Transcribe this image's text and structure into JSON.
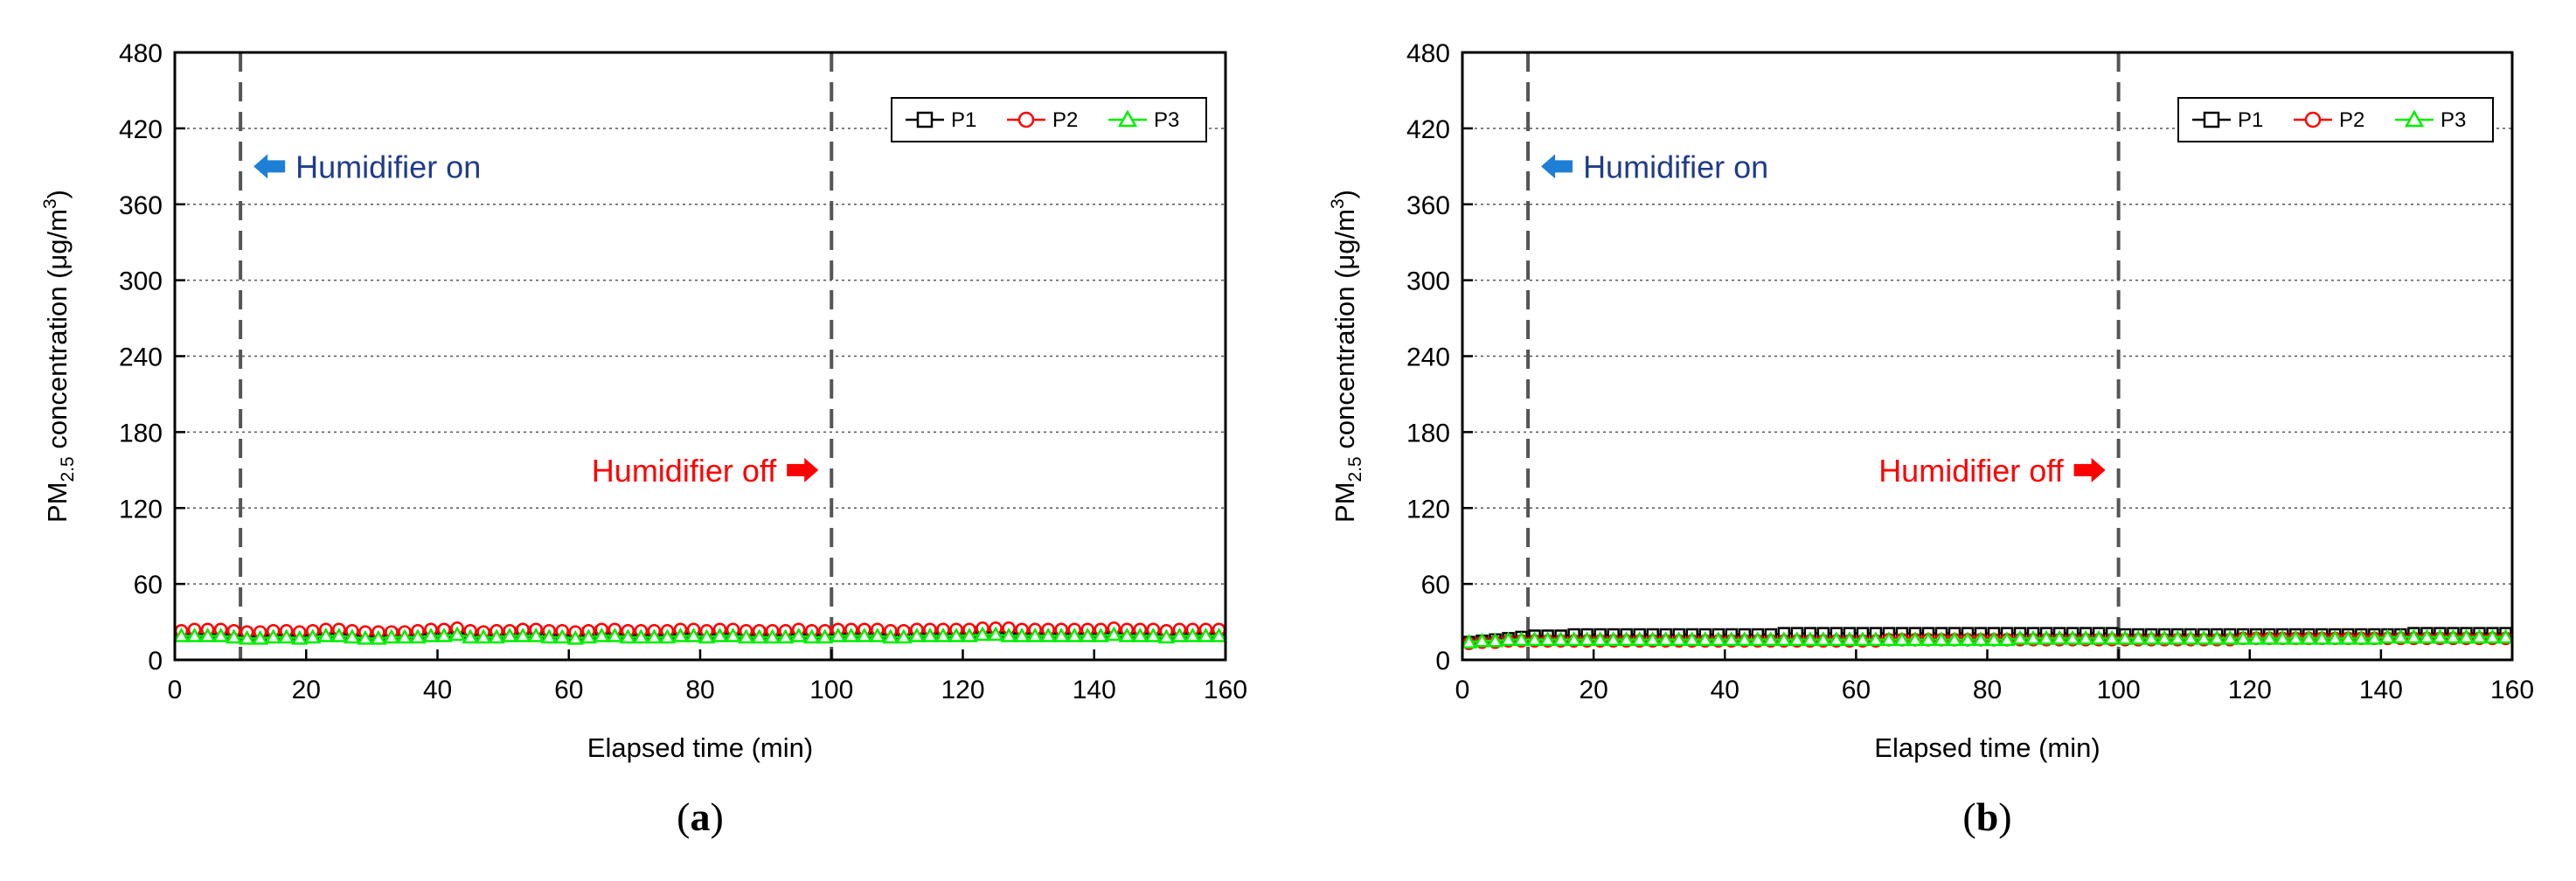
{
  "chart_data": [
    {
      "type": "line",
      "panel_label": "a",
      "xlabel": "Elapsed time (min)",
      "ylabel": {
        "pre": "PM",
        "sub": "2.5",
        "mid": " concentration  (μg/m",
        "sup": "3",
        "post": ")"
      },
      "xlim": [
        0,
        160
      ],
      "ylim": [
        0,
        480
      ],
      "xticks": [
        0,
        20,
        40,
        60,
        80,
        100,
        120,
        140,
        160
      ],
      "yticks": [
        0,
        60,
        120,
        180,
        240,
        300,
        360,
        420,
        480
      ],
      "grid": "horizontal-dotted",
      "legend_position": "top-right",
      "vlines": [
        10,
        100
      ],
      "annotations": [
        {
          "text": "Humidifier on",
          "color": "#1f3c88",
          "arrow_color": "#1e7fd6",
          "arrow": "left",
          "x": 12,
          "y": 390
        },
        {
          "text": "Humidifier off",
          "color": "#ff0000",
          "arrow_color": "#ff0000",
          "arrow": "right",
          "x": 98,
          "y": 150
        }
      ],
      "series": [
        {
          "name": "P1",
          "marker": "square",
          "color": "#000000",
          "x": [
            1,
            3,
            5,
            7,
            9,
            11,
            13,
            15,
            17,
            19,
            21,
            23,
            25,
            27,
            29,
            31,
            33,
            35,
            37,
            39,
            41,
            43,
            45,
            47,
            49,
            51,
            53,
            55,
            57,
            59,
            61,
            63,
            65,
            67,
            69,
            71,
            73,
            75,
            77,
            79,
            81,
            83,
            85,
            87,
            89,
            91,
            93,
            95,
            97,
            99,
            101,
            103,
            105,
            107,
            109,
            111,
            113,
            115,
            117,
            119,
            121,
            123,
            125,
            127,
            129,
            131,
            133,
            135,
            137,
            139,
            141,
            143,
            145,
            147,
            149,
            151,
            153,
            155,
            157,
            159
          ],
          "values": [
            20,
            20,
            20,
            20,
            21,
            19,
            19,
            20,
            20,
            19,
            20,
            21,
            21,
            20,
            19,
            19,
            20,
            20,
            20,
            21,
            22,
            22,
            20,
            20,
            20,
            21,
            22,
            22,
            20,
            20,
            19,
            21,
            22,
            21,
            20,
            20,
            20,
            20,
            21,
            21,
            20,
            21,
            21,
            20,
            21,
            20,
            20,
            21,
            20,
            20,
            21,
            21,
            22,
            21,
            20,
            21,
            21,
            21,
            21,
            21,
            22,
            22,
            22,
            21,
            21,
            21,
            21,
            21,
            21,
            21,
            21,
            22,
            21,
            21,
            21,
            20,
            21,
            21,
            21,
            21
          ]
        },
        {
          "name": "P2",
          "marker": "circle",
          "color": "#ff0000",
          "x": [
            1,
            3,
            5,
            7,
            9,
            11,
            13,
            15,
            17,
            19,
            21,
            23,
            25,
            27,
            29,
            31,
            33,
            35,
            37,
            39,
            41,
            43,
            45,
            47,
            49,
            51,
            53,
            55,
            57,
            59,
            61,
            63,
            65,
            67,
            69,
            71,
            73,
            75,
            77,
            79,
            81,
            83,
            85,
            87,
            89,
            91,
            93,
            95,
            97,
            99,
            101,
            103,
            105,
            107,
            109,
            111,
            113,
            115,
            117,
            119,
            121,
            123,
            125,
            127,
            129,
            131,
            133,
            135,
            137,
            139,
            141,
            143,
            145,
            147,
            149,
            151,
            153,
            155,
            157,
            159
          ],
          "values": [
            23,
            24,
            24,
            24,
            23,
            22,
            22,
            23,
            23,
            22,
            23,
            24,
            24,
            23,
            22,
            22,
            22,
            22,
            23,
            24,
            24,
            25,
            23,
            22,
            23,
            23,
            24,
            24,
            23,
            23,
            22,
            23,
            24,
            24,
            23,
            23,
            23,
            23,
            24,
            24,
            23,
            24,
            24,
            23,
            23,
            23,
            23,
            24,
            23,
            23,
            24,
            24,
            24,
            24,
            23,
            23,
            24,
            24,
            24,
            24,
            24,
            25,
            25,
            25,
            24,
            24,
            24,
            24,
            24,
            24,
            24,
            25,
            24,
            24,
            24,
            23,
            24,
            24,
            24,
            24
          ]
        },
        {
          "name": "P3",
          "marker": "triangle",
          "color": "#00ee00",
          "x": [
            1,
            3,
            5,
            7,
            9,
            11,
            13,
            15,
            17,
            19,
            21,
            23,
            25,
            27,
            29,
            31,
            33,
            35,
            37,
            39,
            41,
            43,
            45,
            47,
            49,
            51,
            53,
            55,
            57,
            59,
            61,
            63,
            65,
            67,
            69,
            71,
            73,
            75,
            77,
            79,
            81,
            83,
            85,
            87,
            89,
            91,
            93,
            95,
            97,
            99,
            101,
            103,
            105,
            107,
            109,
            111,
            113,
            115,
            117,
            119,
            121,
            123,
            125,
            127,
            129,
            131,
            133,
            135,
            137,
            139,
            141,
            143,
            145,
            147,
            149,
            151,
            153,
            155,
            157,
            159
          ],
          "values": [
            19,
            19,
            19,
            19,
            18,
            17,
            17,
            18,
            18,
            17,
            18,
            19,
            19,
            18,
            17,
            17,
            18,
            18,
            18,
            19,
            19,
            20,
            18,
            18,
            18,
            19,
            19,
            19,
            18,
            18,
            17,
            18,
            19,
            19,
            18,
            18,
            18,
            18,
            19,
            19,
            18,
            19,
            19,
            18,
            18,
            18,
            18,
            19,
            18,
            18,
            19,
            19,
            19,
            19,
            18,
            18,
            19,
            19,
            19,
            19,
            19,
            20,
            20,
            19,
            19,
            19,
            19,
            19,
            19,
            19,
            19,
            20,
            19,
            19,
            19,
            18,
            19,
            19,
            19,
            19
          ]
        }
      ]
    },
    {
      "type": "line",
      "panel_label": "b",
      "xlabel": "Elapsed time (min)",
      "ylabel": {
        "pre": "PM",
        "sub": "2.5",
        "mid": " concentration  (μg/m",
        "sup": "3",
        "post": ")"
      },
      "xlim": [
        0,
        160
      ],
      "ylim": [
        0,
        480
      ],
      "xticks": [
        0,
        20,
        40,
        60,
        80,
        100,
        120,
        140,
        160
      ],
      "yticks": [
        0,
        60,
        120,
        180,
        240,
        300,
        360,
        420,
        480
      ],
      "grid": "horizontal-dotted",
      "legend_position": "top-right",
      "vlines": [
        10,
        100
      ],
      "annotations": [
        {
          "text": "Humidifier on",
          "color": "#1f3c88",
          "arrow_color": "#1e7fd6",
          "arrow": "left",
          "x": 12,
          "y": 390
        },
        {
          "text": "Humidifier off",
          "color": "#ff0000",
          "arrow_color": "#ff0000",
          "arrow": "right",
          "x": 98,
          "y": 150
        }
      ],
      "series": [
        {
          "name": "P1",
          "marker": "square",
          "color": "#000000",
          "x": [
            1,
            3,
            5,
            7,
            9,
            11,
            13,
            15,
            17,
            19,
            21,
            23,
            25,
            27,
            29,
            31,
            33,
            35,
            37,
            39,
            41,
            43,
            45,
            47,
            49,
            51,
            53,
            55,
            57,
            59,
            61,
            63,
            65,
            67,
            69,
            71,
            73,
            75,
            77,
            79,
            81,
            83,
            85,
            87,
            89,
            91,
            93,
            95,
            97,
            99,
            101,
            103,
            105,
            107,
            109,
            111,
            113,
            115,
            117,
            119,
            121,
            123,
            125,
            127,
            129,
            131,
            133,
            135,
            137,
            139,
            141,
            143,
            145,
            147,
            149,
            151,
            153,
            155,
            157,
            159
          ],
          "values": [
            14,
            15,
            16,
            17,
            18,
            19,
            19,
            19,
            20,
            20,
            20,
            20,
            20,
            20,
            20,
            20,
            20,
            20,
            20,
            20,
            20,
            20,
            20,
            20,
            21,
            21,
            21,
            21,
            21,
            21,
            21,
            21,
            21,
            21,
            21,
            21,
            21,
            21,
            21,
            21,
            21,
            21,
            21,
            21,
            21,
            21,
            21,
            21,
            21,
            21,
            20,
            20,
            20,
            20,
            20,
            20,
            20,
            20,
            20,
            20,
            20,
            20,
            20,
            20,
            20,
            20,
            20,
            20,
            20,
            20,
            20,
            20,
            21,
            21,
            21,
            21,
            21,
            21,
            21,
            21
          ]
        },
        {
          "name": "P2",
          "marker": "circle",
          "color": "#ff0000",
          "x": [
            1,
            3,
            5,
            7,
            9,
            11,
            13,
            15,
            17,
            19,
            21,
            23,
            25,
            27,
            29,
            31,
            33,
            35,
            37,
            39,
            41,
            43,
            45,
            47,
            49,
            51,
            53,
            55,
            57,
            59,
            61,
            63,
            65,
            67,
            69,
            71,
            73,
            75,
            77,
            79,
            81,
            83,
            85,
            87,
            89,
            91,
            93,
            95,
            97,
            99,
            101,
            103,
            105,
            107,
            109,
            111,
            113,
            115,
            117,
            119,
            121,
            123,
            125,
            127,
            129,
            131,
            133,
            135,
            137,
            139,
            141,
            143,
            145,
            147,
            149,
            151,
            153,
            155,
            157,
            159
          ],
          "values": [
            13,
            14,
            14,
            15,
            15,
            15,
            15,
            15,
            15,
            15,
            15,
            15,
            15,
            15,
            15,
            15,
            15,
            15,
            15,
            15,
            15,
            15,
            15,
            15,
            15,
            15,
            15,
            15,
            15,
            15,
            15,
            15,
            16,
            16,
            16,
            16,
            16,
            16,
            16,
            16,
            16,
            16,
            16,
            16,
            16,
            16,
            16,
            16,
            16,
            16,
            16,
            16,
            16,
            16,
            16,
            16,
            16,
            16,
            16,
            17,
            17,
            17,
            17,
            17,
            17,
            17,
            17,
            17,
            17,
            17,
            17,
            17,
            17,
            17,
            17,
            17,
            17,
            17,
            17,
            17
          ]
        },
        {
          "name": "P3",
          "marker": "triangle",
          "color": "#00ee00",
          "x": [
            1,
            3,
            5,
            7,
            9,
            11,
            13,
            15,
            17,
            19,
            21,
            23,
            25,
            27,
            29,
            31,
            33,
            35,
            37,
            39,
            41,
            43,
            45,
            47,
            49,
            51,
            53,
            55,
            57,
            59,
            61,
            63,
            65,
            67,
            69,
            71,
            73,
            75,
            77,
            79,
            81,
            83,
            85,
            87,
            89,
            91,
            93,
            95,
            97,
            99,
            101,
            103,
            105,
            107,
            109,
            111,
            113,
            115,
            117,
            119,
            121,
            123,
            125,
            127,
            129,
            131,
            133,
            135,
            137,
            139,
            141,
            143,
            145,
            147,
            149,
            151,
            153,
            155,
            157,
            159
          ],
          "values": [
            14,
            15,
            15,
            16,
            16,
            16,
            16,
            16,
            16,
            16,
            16,
            16,
            16,
            16,
            16,
            16,
            16,
            16,
            16,
            16,
            16,
            16,
            16,
            16,
            16,
            16,
            16,
            16,
            16,
            16,
            16,
            16,
            16,
            16,
            16,
            16,
            16,
            16,
            16,
            16,
            16,
            16,
            17,
            17,
            17,
            17,
            17,
            17,
            17,
            17,
            17,
            17,
            17,
            17,
            17,
            17,
            17,
            17,
            17,
            17,
            17,
            17,
            17,
            17,
            17,
            17,
            17,
            17,
            17,
            17,
            18,
            18,
            18,
            18,
            18,
            18,
            18,
            18,
            18,
            18
          ]
        }
      ]
    }
  ]
}
